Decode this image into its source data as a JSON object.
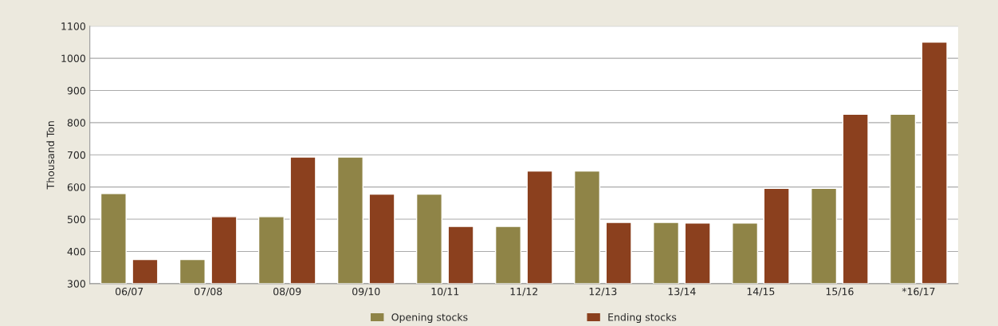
{
  "chart_data": {
    "type": "bar",
    "ylabel": "Thousand Ton",
    "categories": [
      "06/07",
      "07/08",
      "08/09",
      "09/10",
      "10/11",
      "11/12",
      "12/13",
      "13/14",
      "14/15",
      "15/16",
      "*16/17"
    ],
    "series": [
      {
        "name": "Opening stocks",
        "color": "#8f8447",
        "values": [
          580,
          375,
          508,
          693,
          578,
          478,
          650,
          490,
          488,
          596,
          826
        ]
      },
      {
        "name": "Ending stocks",
        "color": "#8b401e",
        "values": [
          375,
          508,
          693,
          578,
          478,
          650,
          490,
          488,
          596,
          826,
          1050
        ]
      }
    ],
    "ylim": [
      300,
      1100
    ],
    "yticks": [
      300,
      400,
      500,
      600,
      700,
      800,
      900,
      1000,
      1100
    ],
    "grid": "y",
    "legend": "bottom"
  }
}
